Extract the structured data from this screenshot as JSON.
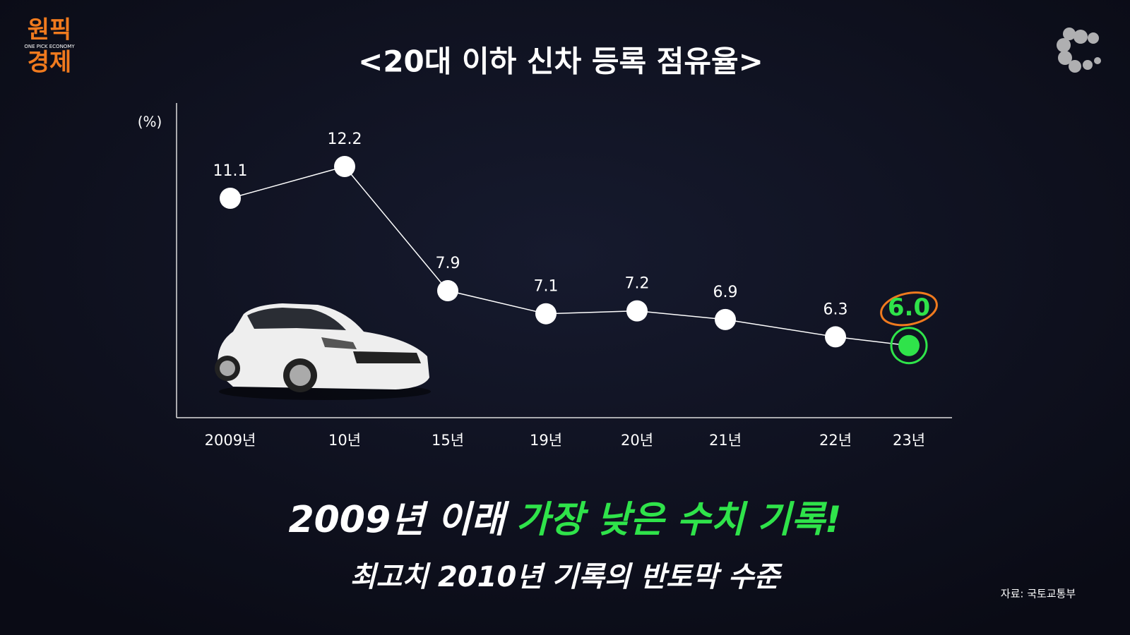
{
  "chart_data": {
    "type": "line",
    "title": "<20대 이하 신차 등록 점유율>",
    "ylabel": "(%)",
    "categories": [
      "2009년",
      "10년",
      "15년",
      "19년",
      "20년",
      "21년",
      "22년",
      "23년"
    ],
    "values": [
      11.1,
      12.2,
      7.9,
      7.1,
      7.2,
      6.9,
      6.3,
      6.0
    ],
    "value_labels": [
      "11.1",
      "12.2",
      "7.9",
      "7.1",
      "7.2",
      "6.9",
      "6.3",
      "6.0"
    ],
    "color": "#ffffff",
    "highlight_color": "#2fe34a",
    "ylim": [
      3.5,
      14.4
    ],
    "headline": "2009년 이래",
    "headline_highlight": "가장 낮은 수치 기록!",
    "subline": "최고치 2010년 기록의 반토막 수준",
    "source": "자료: 국토교통부",
    "logo": [
      "원픽",
      "경제"
    ],
    "logo_tagline": "ONE PICK ECONOMY"
  }
}
